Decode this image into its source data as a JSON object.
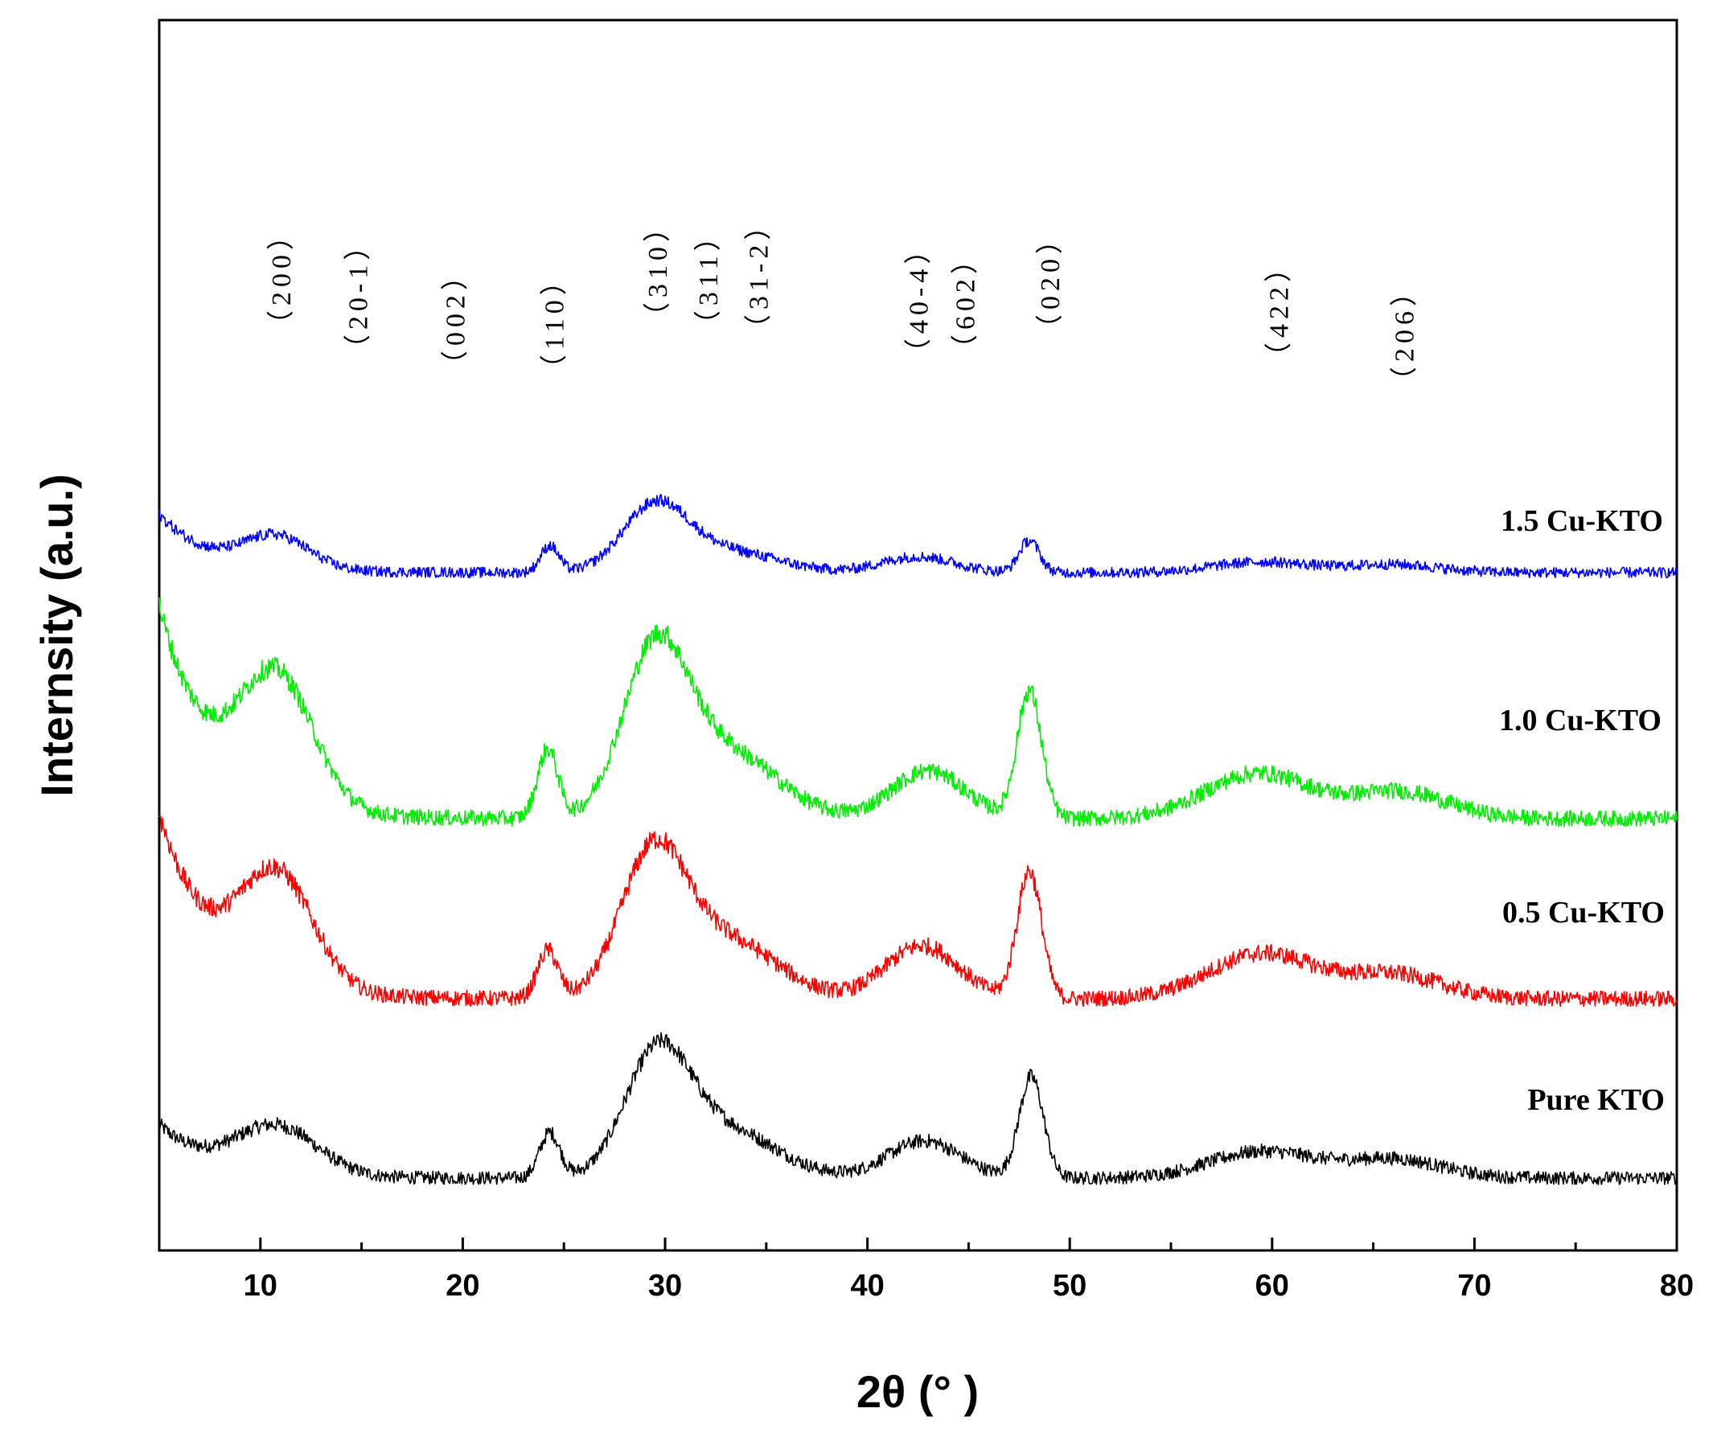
{
  "chart_data": {
    "type": "line",
    "title": "",
    "xlabel": "2θ (°  )",
    "ylabel": "Internsity (a.u.)",
    "xlim": [
      5,
      80
    ],
    "x_ticks": [
      10,
      20,
      30,
      40,
      50,
      60,
      70,
      80
    ],
    "x_tick_labels": [
      "10",
      "20",
      "30",
      "40",
      "50",
      "60",
      "70",
      "80"
    ],
    "y_ticks_shown": false,
    "grid": false,
    "legend": "inline labels at right end of each curve",
    "series": [
      {
        "name": "Pure KTO",
        "color": "#000000",
        "baseline": 0.0,
        "peaks": [
          {
            "x": 10.8,
            "amp": 0.18,
            "width": 2.0
          },
          {
            "x": 24.3,
            "amp": 0.17,
            "width": 0.5
          },
          {
            "x": 29.6,
            "amp": 0.44,
            "width": 1.6
          },
          {
            "x": 33.0,
            "amp": 0.18,
            "width": 2.5
          },
          {
            "x": 42.8,
            "amp": 0.14,
            "width": 1.8
          },
          {
            "x": 48.1,
            "amp": 0.38,
            "width": 0.6
          },
          {
            "x": 59.5,
            "amp": 0.1,
            "width": 2.6
          },
          {
            "x": 66.0,
            "amp": 0.07,
            "width": 2.4
          }
        ],
        "low_angle_rise": 0.2,
        "noise": 0.025
      },
      {
        "name": "0.5 Cu-KTO",
        "color": "#ff0000",
        "baseline": 0.0,
        "peaks": [
          {
            "x": 10.8,
            "amp": 0.42,
            "width": 1.8
          },
          {
            "x": 24.2,
            "amp": 0.18,
            "width": 0.5
          },
          {
            "x": 29.4,
            "amp": 0.52,
            "width": 1.6
          },
          {
            "x": 33.0,
            "amp": 0.22,
            "width": 2.5
          },
          {
            "x": 42.7,
            "amp": 0.2,
            "width": 1.8
          },
          {
            "x": 48.0,
            "amp": 0.48,
            "width": 0.6
          },
          {
            "x": 59.5,
            "amp": 0.17,
            "width": 2.6
          },
          {
            "x": 66.0,
            "amp": 0.09,
            "width": 2.4
          }
        ],
        "low_angle_rise": 0.7,
        "noise": 0.03
      },
      {
        "name": "1.0 Cu-KTO",
        "color": "#00ee00",
        "baseline": 0.0,
        "peaks": [
          {
            "x": 10.8,
            "amp": 0.48,
            "width": 1.8
          },
          {
            "x": 24.2,
            "amp": 0.26,
            "width": 0.5
          },
          {
            "x": 29.5,
            "amp": 0.6,
            "width": 1.6
          },
          {
            "x": 33.0,
            "amp": 0.25,
            "width": 2.5
          },
          {
            "x": 43.0,
            "amp": 0.18,
            "width": 1.8
          },
          {
            "x": 48.0,
            "amp": 0.48,
            "width": 0.6
          },
          {
            "x": 59.3,
            "amp": 0.17,
            "width": 2.6
          },
          {
            "x": 66.3,
            "amp": 0.1,
            "width": 2.4
          }
        ],
        "low_angle_rise": 0.8,
        "noise": 0.03
      },
      {
        "name": "1.5 Cu-KTO",
        "color": "#0000ff",
        "baseline": 0.0,
        "peaks": [
          {
            "x": 10.8,
            "amp": 0.12,
            "width": 1.6
          },
          {
            "x": 24.3,
            "amp": 0.1,
            "width": 0.45
          },
          {
            "x": 29.5,
            "amp": 0.24,
            "width": 1.6
          },
          {
            "x": 33.0,
            "amp": 0.08,
            "width": 2.5
          },
          {
            "x": 42.5,
            "amp": 0.06,
            "width": 1.8
          },
          {
            "x": 48.0,
            "amp": 0.12,
            "width": 0.5
          },
          {
            "x": 59.5,
            "amp": 0.04,
            "width": 2.4
          },
          {
            "x": 66.0,
            "amp": 0.03,
            "width": 2.2
          }
        ],
        "low_angle_rise": 0.22,
        "noise": 0.02
      }
    ],
    "annotations": [
      {
        "text": "（200）",
        "x": 11.0
      },
      {
        "text": "（20-1）",
        "x": 14.8
      },
      {
        "text": "（002）",
        "x": 19.6
      },
      {
        "text": "（110）",
        "x": 24.5
      },
      {
        "text": "（310）",
        "x": 29.6
      },
      {
        "text": "（311）",
        "x": 32.1
      },
      {
        "text": "（31-2）",
        "x": 34.6
      },
      {
        "text": "（40-4）",
        "x": 42.5
      },
      {
        "text": "（602）",
        "x": 44.8
      },
      {
        "text": "（020）",
        "x": 49.0
      },
      {
        "text": "（422）",
        "x": 60.3
      },
      {
        "text": "（206）",
        "x": 66.5
      }
    ]
  }
}
